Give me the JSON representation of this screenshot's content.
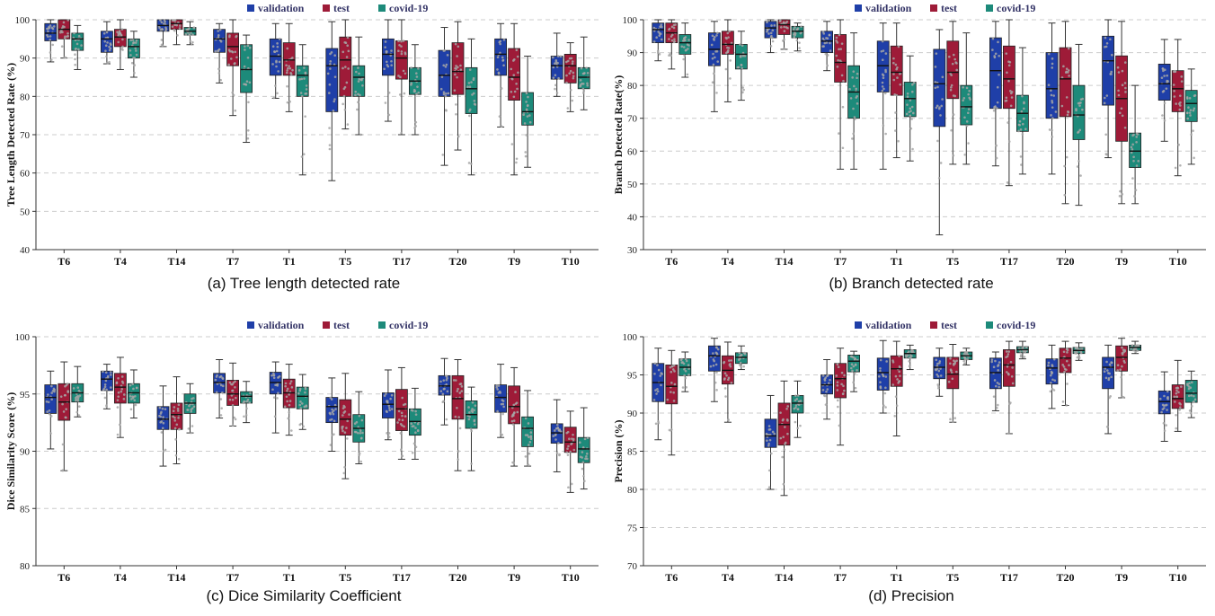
{
  "colors": {
    "validation": "#1f3fa8",
    "test": "#9e1b38",
    "covid": "#1d8a7a",
    "points": "#a6a6a6",
    "grid": "#cccccc"
  },
  "chart_data": [
    {
      "type": "box",
      "caption": "(a) Tree length detected rate",
      "ylabel": "Tree Length Detected Rate (%)",
      "ylim": [
        40,
        100
      ],
      "yticks": [
        40,
        50,
        60,
        70,
        80,
        90,
        100
      ],
      "legend": [
        "validation",
        "test",
        "covid-19"
      ],
      "legend_position": "top-center",
      "categories": [
        "T6",
        "T4",
        "T14",
        "T7",
        "T1",
        "T5",
        "T17",
        "T20",
        "T9",
        "T10"
      ],
      "series": [
        {
          "name": "validation",
          "boxes": [
            [
              89,
              94.5,
              96.5,
              99,
              100
            ],
            [
              88.5,
              91.5,
              95,
              97,
              99.5
            ],
            [
              93,
              97,
              98.5,
              100,
              100
            ],
            [
              83.5,
              91.5,
              95,
              97.5,
              99
            ],
            [
              79.5,
              85.5,
              90.5,
              95,
              99
            ],
            [
              58,
              76,
              88,
              92.5,
              99.5
            ],
            [
              73.5,
              85.5,
              91,
              95,
              100
            ],
            [
              62,
              80,
              85.5,
              92,
              98
            ],
            [
              72,
              85.5,
              91,
              95,
              99
            ],
            [
              80,
              84.5,
              88,
              90.5,
              96.5
            ]
          ]
        },
        {
          "name": "test",
          "boxes": [
            [
              90,
              95,
              97.5,
              100,
              100
            ],
            [
              87,
              93,
              95.5,
              97.5,
              100
            ],
            [
              93.5,
              97.5,
              99,
              100,
              100
            ],
            [
              75,
              88,
              93,
              96.5,
              100
            ],
            [
              76,
              85.5,
              89.5,
              94,
              99
            ],
            [
              71.5,
              80,
              89.5,
              95.5,
              100
            ],
            [
              70,
              84.5,
              90,
              94.5,
              100
            ],
            [
              66,
              80.5,
              86.5,
              94,
              99.5
            ],
            [
              59.5,
              79,
              85,
              92.5,
              99
            ],
            [
              76,
              83.5,
              88,
              91,
              94
            ]
          ]
        },
        {
          "name": "covid-19",
          "boxes": [
            [
              87,
              92,
              95,
              96.5,
              98.5
            ],
            [
              85,
              90,
              93,
              95,
              97
            ],
            [
              93.5,
              96,
              97,
              98,
              99.5
            ],
            [
              68,
              81,
              87,
              93.5,
              96
            ],
            [
              59.5,
              80,
              85.5,
              88,
              93.5
            ],
            [
              70,
              80,
              85,
              88,
              95.5
            ],
            [
              70,
              80.5,
              84,
              87.5,
              93.5
            ],
            [
              59.5,
              75.5,
              82,
              87.5,
              95
            ],
            [
              61.5,
              72.5,
              76,
              81,
              90.5
            ],
            [
              76.5,
              82,
              85,
              87.5,
              95.5
            ]
          ]
        }
      ]
    },
    {
      "type": "box",
      "caption": "(b) Branch detected rate",
      "ylabel": "Branch Detected Rate(%)",
      "ylim": [
        30,
        100
      ],
      "yticks": [
        30,
        40,
        50,
        60,
        70,
        80,
        90,
        100
      ],
      "legend": [
        "validation",
        "test",
        "covid-19"
      ],
      "legend_position": "top-center",
      "categories": [
        "T6",
        "T4",
        "T14",
        "T7",
        "T1",
        "T5",
        "T17",
        "T20",
        "T9",
        "T10"
      ],
      "series": [
        {
          "name": "validation",
          "boxes": [
            [
              87.5,
              93,
              97,
              99,
              100
            ],
            [
              72,
              86,
              91,
              96,
              99.5
            ],
            [
              90,
              94.5,
              97.5,
              99.5,
              100
            ],
            [
              84.5,
              90,
              93.5,
              96.5,
              99.5
            ],
            [
              54.5,
              78,
              86,
              93.5,
              99
            ],
            [
              34.5,
              67.5,
              80.5,
              91,
              97
            ],
            [
              55.5,
              73,
              84.5,
              94.5,
              99.5
            ],
            [
              53,
              70,
              79,
              90,
              99
            ],
            [
              58,
              74,
              87.5,
              95,
              100
            ],
            [
              63,
              75.5,
              80.5,
              86.5,
              94
            ]
          ]
        },
        {
          "name": "test",
          "boxes": [
            [
              85,
              93,
              96,
              99,
              100
            ],
            [
              75,
              89.5,
              92.5,
              96.5,
              100
            ],
            [
              91,
              95.5,
              98.5,
              100,
              100
            ],
            [
              54.5,
              81,
              87,
              95.5,
              100
            ],
            [
              58,
              77,
              84,
              92,
              99
            ],
            [
              56,
              76,
              84,
              93.5,
              99.5
            ],
            [
              49.5,
              73,
              82,
              92,
              100
            ],
            [
              44,
              70.5,
              82,
              91.5,
              99.5
            ],
            [
              44,
              63,
              76,
              89,
              99.5
            ],
            [
              52.5,
              72,
              79,
              84.5,
              94
            ]
          ]
        },
        {
          "name": "covid-19",
          "boxes": [
            [
              82.5,
              89.5,
              93,
              95.5,
              99
            ],
            [
              75.5,
              85,
              89.5,
              92.5,
              96.5
            ],
            [
              90.5,
              94.5,
              96.5,
              98,
              99
            ],
            [
              54.5,
              70,
              78,
              86,
              96
            ],
            [
              57,
              70.5,
              76,
              81,
              89
            ],
            [
              56,
              68,
              73.5,
              80,
              96
            ],
            [
              53,
              66,
              71.5,
              77,
              91.5
            ],
            [
              43.5,
              63.5,
              71,
              80,
              92.5
            ],
            [
              44,
              55,
              60,
              65.5,
              80
            ],
            [
              56,
              69,
              74.5,
              78.5,
              85
            ]
          ]
        }
      ]
    },
    {
      "type": "box",
      "caption": "(c) Dice Similarity Coefficient",
      "ylabel": "Dice Similarity Score (%)",
      "ylim": [
        80,
        100
      ],
      "yticks": [
        80,
        85,
        90,
        95,
        100
      ],
      "legend": [
        "validation",
        "test",
        "covid-19"
      ],
      "legend_position": "top-center",
      "categories": [
        "T6",
        "T4",
        "T14",
        "T7",
        "T1",
        "T5",
        "T17",
        "T20",
        "T9",
        "T10"
      ],
      "series": [
        {
          "name": "validation",
          "boxes": [
            [
              90.2,
              93.3,
              94.7,
              95.8,
              97
            ],
            [
              93.7,
              95.3,
              96.3,
              97,
              97.6
            ],
            [
              88.7,
              91.9,
              92.8,
              93.9,
              95.7
            ],
            [
              92.9,
              95.1,
              96,
              96.8,
              98
            ],
            [
              91.6,
              95,
              96,
              96.9,
              97.8
            ],
            [
              90,
              92.5,
              93.9,
              94.7,
              96.4
            ],
            [
              91,
              92.9,
              94.1,
              95.1,
              97.1
            ],
            [
              92.3,
              94.9,
              95.7,
              96.6,
              98.1
            ],
            [
              91.2,
              93.4,
              94.7,
              95.8,
              97.6
            ],
            [
              88.2,
              90.7,
              91.6,
              92.4,
              94.5
            ]
          ]
        },
        {
          "name": "test",
          "boxes": [
            [
              88.3,
              92.7,
              94.3,
              95.9,
              97.8
            ],
            [
              91.2,
              94.2,
              95.6,
              96.8,
              98.2
            ],
            [
              88.9,
              91.9,
              93.2,
              94.2,
              96.5
            ],
            [
              92.2,
              94,
              95,
              96.2,
              97.7
            ],
            [
              91.4,
              93.8,
              95.1,
              96.3,
              97.6
            ],
            [
              87.6,
              91.4,
              92.8,
              94.5,
              96.8
            ],
            [
              89.3,
              91.8,
              93.7,
              95.4,
              97.3
            ],
            [
              88.3,
              92.8,
              94.6,
              96.6,
              98
            ],
            [
              88.7,
              92.4,
              93.9,
              95.7,
              97.3
            ],
            [
              86.4,
              89.9,
              90.8,
              92.1,
              93.5
            ]
          ]
        },
        {
          "name": "covid-19",
          "boxes": [
            [
              93,
              94.3,
              95.1,
              95.9,
              97.4
            ],
            [
              92.9,
              94.2,
              95.1,
              95.9,
              97.1
            ],
            [
              91.6,
              93.3,
              94.2,
              95,
              95.9
            ],
            [
              92.5,
              94.2,
              94.8,
              95.2,
              96.1
            ],
            [
              91.9,
              93.7,
              94.8,
              95.6,
              96.7
            ],
            [
              88.9,
              90.8,
              92,
              93.2,
              95.2
            ],
            [
              89.3,
              91.4,
              92.6,
              93.7,
              95.5
            ],
            [
              88.3,
              92,
              93.2,
              94.4,
              95.6
            ],
            [
              88.7,
              90.4,
              92,
              93,
              95.3
            ],
            [
              86.7,
              89,
              90.2,
              91.2,
              93.8
            ]
          ]
        }
      ]
    },
    {
      "type": "box",
      "caption": "(d) Precision",
      "ylabel": "Precision (%)",
      "ylim": [
        70,
        100
      ],
      "yticks": [
        70,
        75,
        80,
        85,
        90,
        95,
        100
      ],
      "legend": [
        "validation",
        "test",
        "covid-19"
      ],
      "legend_position": "top-center",
      "categories": [
        "T6",
        "T4",
        "T14",
        "T7",
        "T1",
        "T5",
        "T17",
        "T20",
        "T9",
        "T10"
      ],
      "series": [
        {
          "name": "validation",
          "boxes": [
            [
              86.5,
              91.5,
              94,
              96.5,
              98.5
            ],
            [
              91.5,
              95.5,
              97.5,
              98.8,
              99.8
            ],
            [
              80,
              85.5,
              87,
              89.2,
              92.3
            ],
            [
              89.2,
              92.5,
              93.7,
              95,
              97
            ],
            [
              90,
              93,
              95.3,
              97.2,
              99.5
            ],
            [
              92.2,
              94.5,
              96,
              97.3,
              98.5
            ],
            [
              90.3,
              93.2,
              95.3,
              97.2,
              98
            ],
            [
              90.6,
              93.8,
              95.9,
              97.1,
              98.9
            ],
            [
              87.3,
              93.2,
              96,
              97.3,
              98.9
            ],
            [
              86.3,
              89.9,
              91.5,
              92.9,
              95.4
            ]
          ]
        },
        {
          "name": "test",
          "boxes": [
            [
              84.5,
              91.2,
              93.5,
              96.3,
              98.2
            ],
            [
              88.8,
              93.8,
              95.6,
              97.5,
              99.3
            ],
            [
              79.2,
              85.8,
              88.5,
              91.3,
              94.2
            ],
            [
              85.8,
              92,
              94.5,
              96.5,
              98.5
            ],
            [
              87,
              93.5,
              95.8,
              97.5,
              99.4
            ],
            [
              88.8,
              93.2,
              95.1,
              97.3,
              99
            ],
            [
              87.3,
              93.5,
              96.3,
              98.3,
              99.4
            ],
            [
              91,
              95.3,
              97.2,
              98.5,
              99.4
            ],
            [
              92,
              95.5,
              97.3,
              98.8,
              99.8
            ],
            [
              87.6,
              90.6,
              91.9,
              93.7,
              96.9
            ]
          ]
        },
        {
          "name": "covid-19",
          "boxes": [
            [
              92.8,
              94.9,
              96,
              97.1,
              98
            ],
            [
              95.7,
              96.5,
              97.3,
              97.9,
              98.8
            ],
            [
              86.8,
              90,
              91.3,
              92.3,
              94.2
            ],
            [
              92.8,
              95.4,
              96.8,
              97.6,
              98.1
            ],
            [
              95.7,
              97.2,
              97.8,
              98.3,
              98.9
            ],
            [
              96.3,
              97,
              97.5,
              98,
              98.5
            ],
            [
              97.1,
              97.9,
              98.3,
              98.7,
              99.4
            ],
            [
              96.9,
              97.8,
              98.2,
              98.6,
              99.2
            ],
            [
              97.8,
              98.2,
              98.6,
              98.9,
              99.4
            ],
            [
              89.4,
              91.4,
              92.6,
              94.3,
              95.5
            ]
          ]
        }
      ]
    }
  ]
}
